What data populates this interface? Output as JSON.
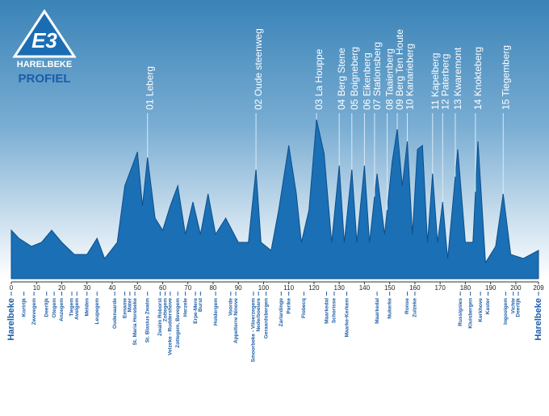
{
  "chart_data": {
    "type": "area",
    "x": [
      0,
      3,
      8,
      12,
      16,
      20,
      25,
      30,
      34,
      37,
      42,
      45,
      48,
      50,
      52,
      54,
      57,
      60,
      63,
      66,
      69,
      72,
      75,
      78,
      81,
      85,
      90,
      94,
      97,
      99,
      103,
      106,
      110,
      113,
      115,
      118,
      121,
      124,
      127,
      130,
      132,
      135,
      137,
      140,
      142,
      145,
      148,
      151,
      153,
      155,
      157,
      159,
      161,
      163,
      165,
      167,
      169,
      171,
      173,
      177,
      180,
      183,
      185,
      188,
      192,
      195,
      198,
      203,
      209
    ],
    "values": [
      60,
      50,
      40,
      45,
      60,
      45,
      30,
      30,
      50,
      25,
      45,
      115,
      140,
      157,
      90,
      150,
      75,
      60,
      90,
      115,
      55,
      95,
      55,
      105,
      55,
      75,
      45,
      45,
      135,
      45,
      35,
      85,
      165,
      105,
      45,
      85,
      197,
      155,
      45,
      140,
      45,
      135,
      45,
      140,
      45,
      130,
      55,
      145,
      185,
      115,
      170,
      55,
      160,
      165,
      45,
      130,
      45,
      95,
      25,
      160,
      45,
      45,
      170,
      20,
      40,
      105,
      30,
      25,
      35
    ],
    "color": "#1a6fb5",
    "xlim": [
      0,
      209
    ],
    "xticks": [
      0,
      10,
      20,
      30,
      40,
      50,
      60,
      70,
      80,
      90,
      100,
      110,
      120,
      130,
      140,
      150,
      160,
      170,
      180,
      190,
      200,
      209
    ],
    "ylim": [
      0,
      200
    ],
    "climbs": [
      {
        "number": "01",
        "name": "Leberg",
        "km": 54
      },
      {
        "number": "02",
        "name": "Oude steenweg",
        "km": 97
      },
      {
        "number": "03",
        "name": "La Houppe",
        "km": 121
      },
      {
        "number": "04",
        "name": "Berg Stene",
        "km": 130
      },
      {
        "number": "05",
        "name": "Boigneberg",
        "km": 135
      },
      {
        "number": "06",
        "name": "Eikenberg",
        "km": 140
      },
      {
        "number": "07",
        "name": "Stationsberg",
        "km": 144
      },
      {
        "number": "08",
        "name": "Taaienberg",
        "km": 149
      },
      {
        "number": "09",
        "name": "Berg Ten Houte",
        "km": 153
      },
      {
        "number": "10",
        "name": "Kanarieberg",
        "km": 157
      },
      {
        "number": "11",
        "name": "Kapelberg",
        "km": 167
      },
      {
        "number": "12",
        "name": "Paterberg",
        "km": 171
      },
      {
        "number": "13",
        "name": "Kwaremont",
        "km": 176
      },
      {
        "number": "14",
        "name": "Knokteberg",
        "km": 184
      },
      {
        "number": "15",
        "name": "Tiegemberg",
        "km": 195
      }
    ],
    "towns": [
      {
        "name": "Harelbeke",
        "km": 0
      },
      {
        "name": "Kortrijk",
        "km": 5
      },
      {
        "name": "Zwevegem",
        "km": 9
      },
      {
        "name": "Deerlijk",
        "km": 14
      },
      {
        "name": "Otegem",
        "km": 17
      },
      {
        "name": "Anzegem",
        "km": 20
      },
      {
        "name": "Tiegem",
        "km": 24
      },
      {
        "name": "Avelgem",
        "km": 26
      },
      {
        "name": "Melden",
        "km": 30
      },
      {
        "name": "Leupegem",
        "km": 34
      },
      {
        "name": "Oudenaarde",
        "km": 41
      },
      {
        "name": "Eename",
        "km": 45
      },
      {
        "name": "Mater",
        "km": 47
      },
      {
        "name": "St. Maria Horebeke",
        "km": 49
      },
      {
        "name": "St. Blasius Zwalm",
        "km": 54
      },
      {
        "name": "Zwalm Roborst",
        "km": 59
      },
      {
        "name": "Zottegem",
        "km": 61
      },
      {
        "name": "Velzeke - Ruddershove",
        "km": 63
      },
      {
        "name": "Zottegem, Bevegem",
        "km": 66
      },
      {
        "name": "Herzele",
        "km": 69
      },
      {
        "name": "Erpe-Mere",
        "km": 73
      },
      {
        "name": "Burst",
        "km": 75
      },
      {
        "name": "Holdergem",
        "km": 81
      },
      {
        "name": "Voorde",
        "km": 87
      },
      {
        "name": "Appelterre Ninove",
        "km": 89
      },
      {
        "name": "Smoorbeke - Viloerzegem",
        "km": 96
      },
      {
        "name": "Nederboelare",
        "km": 98
      },
      {
        "name": "Geraardsbergen",
        "km": 101
      },
      {
        "name": "Zarlardinge",
        "km": 107
      },
      {
        "name": "Parike",
        "km": 110
      },
      {
        "name": "Flobecq",
        "km": 116
      },
      {
        "name": "Maarkedal",
        "km": 125
      },
      {
        "name": "Schorisse",
        "km": 128
      },
      {
        "name": "Maarke-Kerkem",
        "km": 133
      },
      {
        "name": "Maarkedal",
        "km": 145
      },
      {
        "name": "Nukerke",
        "km": 150
      },
      {
        "name": "Ronse",
        "km": 157
      },
      {
        "name": "Zulzeke",
        "km": 160
      },
      {
        "name": "Russignies",
        "km": 178
      },
      {
        "name": "Kluisbergen",
        "km": 182
      },
      {
        "name": "Kerkhove",
        "km": 186
      },
      {
        "name": "Kaster",
        "km": 189
      },
      {
        "name": "Ingooigem",
        "km": 196
      },
      {
        "name": "Vichte",
        "km": 199
      },
      {
        "name": "Deerlijk",
        "km": 201
      },
      {
        "name": "Harelbeke",
        "km": 209
      }
    ]
  },
  "logo": {
    "mark": "E3",
    "name": "HARELBEKE",
    "subtitle": "PROFIEL"
  }
}
